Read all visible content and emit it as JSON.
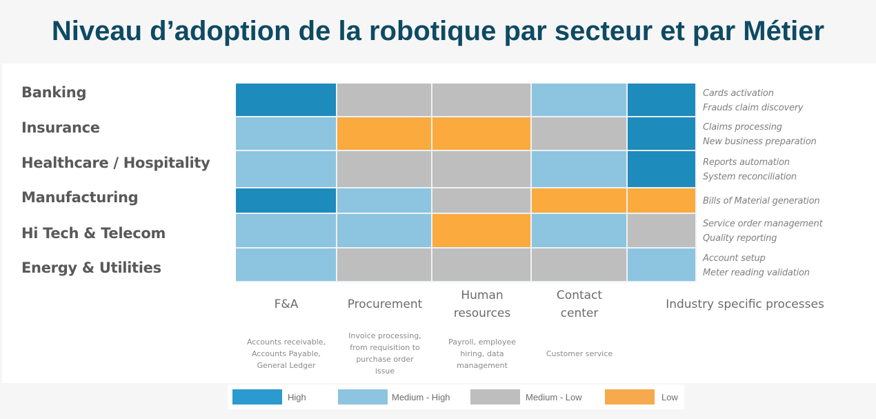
{
  "title": "Niveau d’adoption de la robotique par secteur et par Métier",
  "chart_data": {
    "type": "heatmap",
    "title": "Niveau d’adoption de la robotique par secteur et par Métier",
    "rows": [
      "Banking",
      "Insurance",
      "Healthcare / Hospitality",
      "Manufacturing",
      "Hi Tech & Telecom",
      "Energy & Utilities"
    ],
    "columns": [
      {
        "label": "F&A",
        "description": "Accounts receivable, Accounts Payable, General Ledger"
      },
      {
        "label": "Procurement",
        "description": "Invoice processing, from requisition to purchase order issue"
      },
      {
        "label": "Human resources",
        "description": "Payroll, employee hiring, data management"
      },
      {
        "label": "Contact center",
        "description": "Customer service"
      },
      {
        "label": "Industry specific processes",
        "description": ""
      }
    ],
    "levels": [
      "High",
      "Medium - High",
      "Medium - Low",
      "Low"
    ],
    "level_colors": {
      "High": "#1e8bbd",
      "Medium - High": "#8dc4e0",
      "Medium - Low": "#bebebe",
      "Low": "#fbaa3e"
    },
    "values": [
      [
        "High",
        "Medium - Low",
        "Medium - Low",
        "Medium - High",
        "High"
      ],
      [
        "Medium - High",
        "Low",
        "Low",
        "Medium - Low",
        "High"
      ],
      [
        "Medium - High",
        "Medium - Low",
        "Medium - Low",
        "Medium - High",
        "High"
      ],
      [
        "High",
        "Medium - High",
        "Medium - Low",
        "Low",
        "Low"
      ],
      [
        "Medium - High",
        "Medium - High",
        "Low",
        "Medium - High",
        "Medium - Low"
      ],
      [
        "Medium - High",
        "Medium - Low",
        "Medium - Low",
        "Medium - Low",
        "Medium - High"
      ]
    ],
    "industry_processes": [
      [
        "Cards activation",
        "Frauds claim discovery"
      ],
      [
        "Claims processing",
        "New business preparation"
      ],
      [
        "Reports automation",
        "System reconciliation"
      ],
      [
        "Bills of Material generation"
      ],
      [
        "Service order management",
        "Quality reporting"
      ],
      [
        "Account setup",
        "Meter reading validation"
      ]
    ],
    "column_headers_display": [
      [
        "F&A"
      ],
      [
        "Procurement"
      ],
      [
        "Human",
        "resources"
      ],
      [
        "Contact",
        "center"
      ],
      [
        "Industry specific processes"
      ]
    ],
    "column_desc_display": [
      [
        "Accounts receivable,",
        "Accounts Payable,",
        "General Ledger"
      ],
      [
        "Invoice processing,",
        "from requisition to",
        "purchase order",
        "issue"
      ],
      [
        "Payroll, employee",
        "hiring, data",
        "management"
      ],
      [
        "Customer service"
      ],
      []
    ],
    "legend": [
      {
        "label": "High",
        "color": "#2a9ad0"
      },
      {
        "label": "Medium - High",
        "color": "#8dc4e0"
      },
      {
        "label": "Medium - Low",
        "color": "#bebebe"
      },
      {
        "label": "Low",
        "color": "#f7a94d"
      }
    ]
  }
}
